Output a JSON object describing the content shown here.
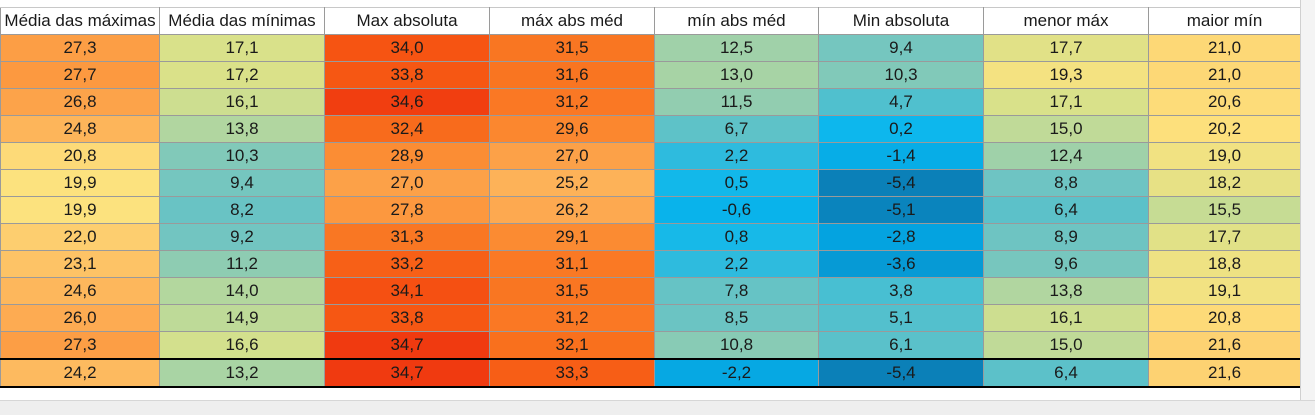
{
  "headers": [
    "Média das máximas",
    "Média das mínimas",
    "Max absoluta",
    "máx abs méd",
    "mín abs méd",
    "Min absoluta",
    "menor máx",
    "maior mín"
  ],
  "rows": [
    [
      "27,3",
      "17,1",
      "34,0",
      "31,5",
      "12,5",
      "9,4",
      "17,7",
      "21,0"
    ],
    [
      "27,7",
      "17,2",
      "33,8",
      "31,6",
      "13,0",
      "10,3",
      "19,3",
      "21,0"
    ],
    [
      "26,8",
      "16,1",
      "34,6",
      "31,2",
      "11,5",
      "4,7",
      "17,1",
      "20,6"
    ],
    [
      "24,8",
      "13,8",
      "32,4",
      "29,6",
      "6,7",
      "0,2",
      "15,0",
      "20,2"
    ],
    [
      "20,8",
      "10,3",
      "28,9",
      "27,0",
      "2,2",
      "-1,4",
      "12,4",
      "19,0"
    ],
    [
      "19,9",
      "9,4",
      "27,0",
      "25,2",
      "0,5",
      "-5,4",
      "8,8",
      "18,2"
    ],
    [
      "19,9",
      "8,2",
      "27,8",
      "26,2",
      "-0,6",
      "-5,1",
      "6,4",
      "15,5"
    ],
    [
      "22,0",
      "9,2",
      "31,3",
      "29,1",
      "0,8",
      "-2,8",
      "8,9",
      "17,7"
    ],
    [
      "23,1",
      "11,2",
      "33,2",
      "31,1",
      "2,2",
      "-3,6",
      "9,6",
      "18,8"
    ],
    [
      "24,6",
      "14,0",
      "34,1",
      "31,5",
      "7,8",
      "3,8",
      "13,8",
      "19,1"
    ],
    [
      "26,0",
      "14,9",
      "33,8",
      "31,2",
      "8,5",
      "5,1",
      "16,1",
      "20,8"
    ],
    [
      "27,3",
      "16,6",
      "34,7",
      "32,1",
      "10,8",
      "6,1",
      "15,0",
      "21,6"
    ]
  ],
  "summary_row": [
    "24,2",
    "13,2",
    "34,7",
    "33,3",
    "-2,2",
    "-5,4",
    "6,4",
    "21,6"
  ],
  "color_scale": {
    "stops": [
      {
        "value": -5.4,
        "color": "#0b80b8"
      },
      {
        "value": -3.0,
        "color": "#04a2df"
      },
      {
        "value": 0.0,
        "color": "#0ab7ee"
      },
      {
        "value": 4.0,
        "color": "#4bbfd0"
      },
      {
        "value": 9.0,
        "color": "#6fc4c2"
      },
      {
        "value": 13.0,
        "color": "#a7d3a5"
      },
      {
        "value": 17.0,
        "color": "#d8e18a"
      },
      {
        "value": 20.0,
        "color": "#fde27e"
      },
      {
        "value": 23.0,
        "color": "#fdc467"
      },
      {
        "value": 26.0,
        "color": "#fdab52"
      },
      {
        "value": 29.0,
        "color": "#fb8c33"
      },
      {
        "value": 32.0,
        "color": "#f9711e"
      },
      {
        "value": 34.0,
        "color": "#f65412"
      },
      {
        "value": 34.7,
        "color": "#f03a10"
      }
    ],
    "light_text_below": -0.3
  }
}
